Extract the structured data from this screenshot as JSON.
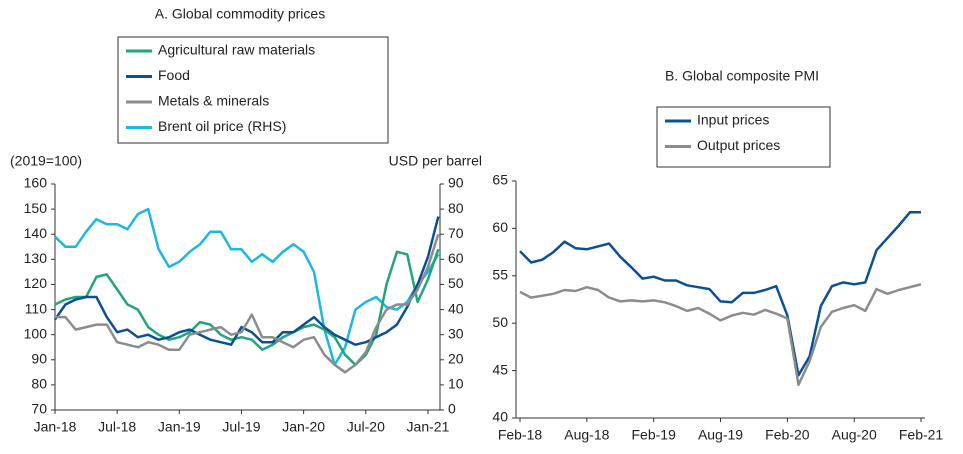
{
  "chart_data": [
    {
      "type": "line",
      "title": "A. Global commodity prices",
      "y_label": "(2019=100)",
      "y2_label": "USD per barrel",
      "categories": [
        "Jan-18",
        null,
        null,
        null,
        null,
        null,
        "Jul-18",
        null,
        null,
        null,
        null,
        null,
        "Jan-19",
        null,
        null,
        null,
        null,
        null,
        "Jul-19",
        null,
        null,
        null,
        null,
        null,
        "Jan-20",
        null,
        null,
        null,
        null,
        null,
        "Jul-20",
        null,
        null,
        null,
        null,
        null,
        "Jan-21",
        null
      ],
      "ylim": [
        70,
        160
      ],
      "yticks": [
        70,
        80,
        90,
        100,
        110,
        120,
        130,
        140,
        150,
        160
      ],
      "y2lim": [
        0,
        90
      ],
      "y2ticks": [
        0,
        10,
        20,
        30,
        40,
        50,
        60,
        70,
        80,
        90
      ],
      "series": [
        {
          "name": "Agricultural raw materials",
          "color": "#1fa67a",
          "values": [
            112,
            114,
            115,
            115,
            123,
            124,
            118,
            112,
            110,
            103,
            100,
            98,
            99,
            101,
            105,
            104,
            100,
            98,
            99,
            98,
            94,
            96,
            99,
            101,
            103,
            104,
            102,
            99,
            92,
            88,
            92,
            100,
            120,
            133,
            132,
            113,
            122,
            134
          ]
        },
        {
          "name": "Food",
          "color": "#0b4f96",
          "values": [
            106,
            112,
            114,
            115,
            115,
            107,
            101,
            102,
            99,
            100,
            98,
            99,
            101,
            102,
            100,
            98,
            97,
            96,
            103,
            101,
            97,
            97,
            101,
            101,
            104,
            107,
            103,
            100,
            98,
            96,
            97,
            99,
            101,
            104,
            111,
            120,
            131,
            147
          ]
        },
        {
          "name": "Metals & minerals",
          "color": "#8c8c8c",
          "values": [
            107,
            107,
            102,
            103,
            104,
            104,
            97,
            96,
            95,
            97,
            96,
            94,
            94,
            100,
            101,
            102,
            103,
            100,
            101,
            108,
            99,
            99,
            97,
            95,
            98,
            99,
            92,
            88,
            85,
            88,
            93,
            103,
            110,
            112,
            112,
            118,
            127,
            140
          ]
        },
        {
          "name": "Brent oil price (RHS)",
          "color": "#1cb8e4",
          "axis": "y2",
          "values": [
            69,
            65,
            65,
            71,
            76,
            74,
            74,
            72,
            78,
            80,
            64,
            57,
            59,
            63,
            66,
            71,
            71,
            64,
            64,
            59,
            62,
            59,
            63,
            66,
            63,
            55,
            32,
            18,
            25,
            40,
            43,
            45,
            41,
            40,
            43,
            50,
            55,
            62
          ]
        }
      ]
    },
    {
      "type": "line",
      "title": "B. Global composite PMI",
      "categories": [
        "Feb-18",
        null,
        null,
        null,
        null,
        null,
        "Aug-18",
        null,
        null,
        null,
        null,
        null,
        "Feb-19",
        null,
        null,
        null,
        null,
        null,
        "Aug-19",
        null,
        null,
        null,
        null,
        null,
        "Feb-20",
        null,
        null,
        null,
        null,
        null,
        "Aug-20",
        null,
        null,
        null,
        null,
        null,
        "Feb-21"
      ],
      "ylim": [
        40,
        65
      ],
      "yticks": [
        40,
        45,
        50,
        55,
        60,
        65
      ],
      "series": [
        {
          "name": "Input prices",
          "color": "#0b4f96",
          "values": [
            57.6,
            56.4,
            56.7,
            57.5,
            58.6,
            57.9,
            57.8,
            58.1,
            58.4,
            57.0,
            55.9,
            54.7,
            54.9,
            54.5,
            54.5,
            54.0,
            53.8,
            53.6,
            52.3,
            52.2,
            53.2,
            53.2,
            53.5,
            53.9,
            50.8,
            44.5,
            46.5,
            51.8,
            53.9,
            54.3,
            54.1,
            54.3,
            57.7,
            59.0,
            60.3,
            61.7,
            61.7
          ]
        },
        {
          "name": "Output prices",
          "color": "#8c8c8c",
          "values": [
            53.3,
            52.7,
            52.9,
            53.1,
            53.5,
            53.4,
            53.8,
            53.5,
            52.7,
            52.3,
            52.4,
            52.3,
            52.4,
            52.2,
            51.8,
            51.3,
            51.6,
            51.0,
            50.3,
            50.8,
            51.1,
            50.9,
            51.4,
            51.0,
            50.5,
            43.5,
            46.0,
            49.6,
            51.2,
            51.6,
            51.9,
            51.3,
            53.6,
            53.1,
            53.5,
            53.8,
            54.1
          ]
        }
      ]
    }
  ]
}
